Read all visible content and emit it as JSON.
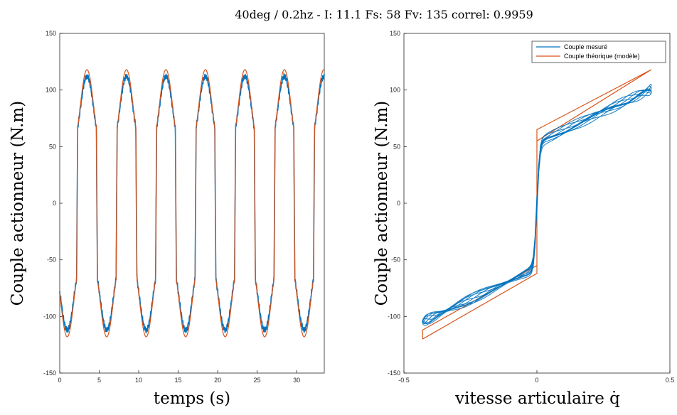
{
  "title": "40deg / 0.2hz - I: 11.1 Fs: 58 Fv: 135 correl: 0.9959",
  "chart_data": [
    {
      "type": "line",
      "xlabel": "temps (s)",
      "ylabel": "Couple actionneur (N.m)",
      "xlim": [
        0,
        33.5
      ],
      "ylim": [
        -150,
        150
      ],
      "xticks": [
        "0",
        "5",
        "10",
        "15",
        "20",
        "25",
        "30"
      ],
      "yticks": [
        "-150",
        "-100",
        "-50",
        "0",
        "50",
        "100",
        "150"
      ],
      "grid": false,
      "signal": {
        "period": 5,
        "phase_zero_crossing_up": 2.2,
        "amplitude_theoretical": 118,
        "amplitude_measured": 112,
        "plateau": 65
      },
      "series": [
        {
          "color": "#0072BD"
        },
        {
          "color": "#D95319"
        }
      ]
    },
    {
      "type": "line",
      "xlabel": "vitesse articulaire q̇",
      "ylabel": "Couple actionneur (N.m)",
      "xlim": [
        -0.5,
        0.5
      ],
      "ylim": [
        -150,
        150
      ],
      "xticks": [
        "-0.5",
        "0",
        "0.5"
      ],
      "yticks": [
        "-150",
        "-100",
        "-50",
        "0",
        "50",
        "100",
        "150"
      ],
      "grid": false,
      "legend_position": "top-right",
      "series": [
        {
          "name": "Couple mesuré",
          "color": "#0072BD"
        },
        {
          "name": "Couple théorique (modèle)",
          "color": "#D95319"
        }
      ]
    }
  ]
}
